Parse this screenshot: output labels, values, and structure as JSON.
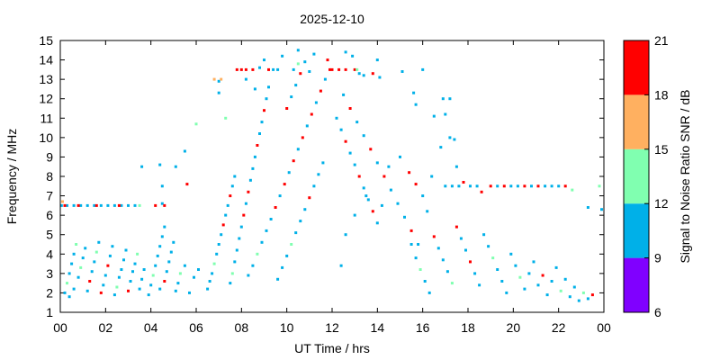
{
  "chart_data": {
    "type": "scatter",
    "title": "2025-12-10",
    "xlabel": "UT Time / hrs",
    "ylabel": "Frequency / MHz",
    "xlim": [
      0,
      24
    ],
    "ylim": [
      1,
      15
    ],
    "xticks": [
      "00",
      "02",
      "04",
      "06",
      "08",
      "10",
      "12",
      "14",
      "16",
      "18",
      "20",
      "22",
      "00"
    ],
    "yticks": [
      "1",
      "2",
      "3",
      "4",
      "5",
      "6",
      "7",
      "8",
      "9",
      "10",
      "11",
      "12",
      "13",
      "14",
      "15"
    ],
    "grid": false,
    "colorbar": {
      "label": "Signal to Noise Ratio SNR / dB",
      "ticks": [
        "6",
        "9",
        "12",
        "15",
        "18",
        "21"
      ],
      "bands": [
        {
          "min": 6,
          "max": 9,
          "color": "#8000ff"
        },
        {
          "min": 9,
          "max": 12,
          "color": "#00b0e8"
        },
        {
          "min": 12,
          "max": 15,
          "color": "#80ffb0"
        },
        {
          "min": 15,
          "max": 18,
          "color": "#ffb060"
        },
        {
          "min": 18,
          "max": 21,
          "color": "#ff0000"
        }
      ]
    },
    "points": [
      [
        0.05,
        6.5,
        11
      ],
      [
        0.3,
        6.5,
        10
      ],
      [
        0.6,
        6.5,
        10
      ],
      [
        0.9,
        6.5,
        11
      ],
      [
        1.2,
        6.5,
        10
      ],
      [
        1.5,
        6.5,
        11
      ],
      [
        1.8,
        6.5,
        10
      ],
      [
        2.1,
        6.5,
        10
      ],
      [
        2.4,
        6.5,
        11
      ],
      [
        2.7,
        6.5,
        10
      ],
      [
        3.0,
        6.5,
        11
      ],
      [
        3.3,
        6.5,
        10
      ],
      [
        3.5,
        6.5,
        13
      ],
      [
        0.2,
        6.5,
        19
      ],
      [
        0.8,
        6.5,
        19
      ],
      [
        1.6,
        6.5,
        19
      ],
      [
        2.6,
        6.5,
        19
      ],
      [
        4.2,
        6.5,
        19
      ],
      [
        4.5,
        6.6,
        10
      ],
      [
        4.6,
        6.5,
        20
      ],
      [
        0.1,
        6.7,
        16
      ],
      [
        0.2,
        2.0,
        11
      ],
      [
        0.3,
        2.5,
        13
      ],
      [
        0.4,
        3.0,
        10
      ],
      [
        0.5,
        3.5,
        11
      ],
      [
        0.6,
        4.0,
        10
      ],
      [
        0.7,
        4.5,
        13
      ],
      [
        0.4,
        1.8,
        10
      ],
      [
        0.6,
        2.2,
        11
      ],
      [
        0.8,
        2.8,
        10
      ],
      [
        0.9,
        3.3,
        12
      ],
      [
        1.0,
        3.8,
        10
      ],
      [
        1.1,
        4.3,
        11
      ],
      [
        1.2,
        2.1,
        10
      ],
      [
        1.3,
        2.6,
        19
      ],
      [
        1.4,
        3.1,
        10
      ],
      [
        1.5,
        3.6,
        11
      ],
      [
        1.6,
        4.1,
        13
      ],
      [
        1.7,
        4.6,
        10
      ],
      [
        1.8,
        2.0,
        19
      ],
      [
        1.9,
        2.4,
        10
      ],
      [
        2.0,
        2.9,
        11
      ],
      [
        2.1,
        3.4,
        19
      ],
      [
        2.2,
        3.9,
        10
      ],
      [
        2.3,
        4.4,
        11
      ],
      [
        2.4,
        1.9,
        10
      ],
      [
        2.5,
        2.3,
        13
      ],
      [
        2.6,
        2.8,
        10
      ],
      [
        2.7,
        3.2,
        11
      ],
      [
        2.8,
        3.7,
        10
      ],
      [
        2.9,
        4.2,
        10
      ],
      [
        3.0,
        2.1,
        19
      ],
      [
        3.1,
        2.6,
        10
      ],
      [
        3.2,
        3.1,
        11
      ],
      [
        3.3,
        3.5,
        10
      ],
      [
        3.4,
        4.0,
        13
      ],
      [
        3.5,
        2.2,
        10
      ],
      [
        3.6,
        2.7,
        11
      ],
      [
        3.7,
        3.2,
        10
      ],
      [
        3.9,
        1.9,
        11
      ],
      [
        4.0,
        2.4,
        10
      ],
      [
        4.1,
        2.9,
        13
      ],
      [
        4.2,
        3.4,
        10
      ],
      [
        4.3,
        3.9,
        11
      ],
      [
        4.4,
        4.4,
        10
      ],
      [
        4.5,
        4.9,
        11
      ],
      [
        4.6,
        5.4,
        10
      ],
      [
        4.4,
        2.2,
        11
      ],
      [
        4.6,
        2.6,
        19
      ],
      [
        4.7,
        3.1,
        10
      ],
      [
        4.8,
        3.6,
        11
      ],
      [
        4.9,
        4.1,
        10
      ],
      [
        5.0,
        4.6,
        11
      ],
      [
        5.1,
        2.1,
        10
      ],
      [
        5.2,
        2.5,
        11
      ],
      [
        5.3,
        3.0,
        13
      ],
      [
        5.5,
        3.4,
        10
      ],
      [
        5.7,
        2.0,
        11
      ],
      [
        5.9,
        2.8,
        10
      ],
      [
        6.1,
        3.2,
        11
      ],
      [
        3.6,
        8.5,
        10
      ],
      [
        4.4,
        8.6,
        10
      ],
      [
        4.5,
        7.5,
        11
      ],
      [
        5.1,
        8.5,
        10
      ],
      [
        5.5,
        9.3,
        10
      ],
      [
        5.6,
        7.6,
        20
      ],
      [
        6.5,
        2.2,
        10
      ],
      [
        6.6,
        2.6,
        11
      ],
      [
        6.7,
        3.0,
        10
      ],
      [
        6.8,
        3.5,
        13
      ],
      [
        6.9,
        4.0,
        10
      ],
      [
        7.0,
        4.5,
        11
      ],
      [
        7.1,
        5.0,
        10
      ],
      [
        7.2,
        5.5,
        19
      ],
      [
        7.3,
        6.0,
        11
      ],
      [
        7.4,
        6.5,
        10
      ],
      [
        7.5,
        7.0,
        19
      ],
      [
        7.6,
        7.5,
        11
      ],
      [
        7.7,
        8.0,
        10
      ],
      [
        7.5,
        2.5,
        11
      ],
      [
        7.6,
        3.0,
        13
      ],
      [
        7.7,
        3.6,
        10
      ],
      [
        7.8,
        4.2,
        11
      ],
      [
        7.9,
        4.8,
        10
      ],
      [
        8.0,
        5.4,
        11
      ],
      [
        8.1,
        6.0,
        19
      ],
      [
        8.2,
        6.6,
        10
      ],
      [
        8.3,
        7.2,
        19
      ],
      [
        8.4,
        7.8,
        11
      ],
      [
        8.5,
        8.4,
        10
      ],
      [
        8.6,
        9.0,
        11
      ],
      [
        8.7,
        9.6,
        19
      ],
      [
        8.8,
        10.2,
        10
      ],
      [
        8.9,
        10.8,
        11
      ],
      [
        9.0,
        11.4,
        19
      ],
      [
        9.1,
        12.0,
        10
      ],
      [
        9.2,
        12.6,
        11
      ],
      [
        8.3,
        2.9,
        10
      ],
      [
        8.5,
        3.4,
        11
      ],
      [
        8.7,
        4.0,
        13
      ],
      [
        8.9,
        4.6,
        10
      ],
      [
        9.1,
        5.2,
        11
      ],
      [
        9.3,
        5.8,
        10
      ],
      [
        9.5,
        6.4,
        19
      ],
      [
        9.7,
        7.0,
        10
      ],
      [
        9.9,
        7.6,
        19
      ],
      [
        10.1,
        8.2,
        11
      ],
      [
        10.3,
        8.8,
        19
      ],
      [
        10.5,
        9.4,
        10
      ],
      [
        10.7,
        10.0,
        19
      ],
      [
        10.9,
        10.6,
        11
      ],
      [
        11.1,
        11.2,
        19
      ],
      [
        11.3,
        11.8,
        10
      ],
      [
        11.5,
        12.4,
        19
      ],
      [
        11.7,
        13.0,
        11
      ],
      [
        11.8,
        14.0,
        20
      ],
      [
        11.9,
        13.5,
        19
      ],
      [
        9.6,
        2.7,
        10
      ],
      [
        9.8,
        3.3,
        11
      ],
      [
        10.0,
        3.9,
        10
      ],
      [
        10.2,
        4.5,
        13
      ],
      [
        10.4,
        5.1,
        10
      ],
      [
        10.6,
        5.7,
        11
      ],
      [
        10.8,
        6.3,
        10
      ],
      [
        11.0,
        6.9,
        19
      ],
      [
        11.2,
        7.5,
        11
      ],
      [
        11.4,
        8.1,
        10
      ],
      [
        11.6,
        8.7,
        11
      ],
      [
        10.0,
        11.5,
        19
      ],
      [
        10.2,
        12.1,
        11
      ],
      [
        10.4,
        12.7,
        10
      ],
      [
        10.6,
        13.3,
        19
      ],
      [
        10.8,
        13.9,
        11
      ],
      [
        9.2,
        13.5,
        19
      ],
      [
        9.6,
        13.5,
        10
      ],
      [
        10.3,
        13.5,
        11
      ],
      [
        10.5,
        13.8,
        12
      ],
      [
        11.0,
        13.4,
        10
      ],
      [
        12.0,
        13.5,
        19
      ],
      [
        12.3,
        13.5,
        19
      ],
      [
        12.6,
        13.5,
        19
      ],
      [
        13.0,
        13.5,
        19
      ],
      [
        13.2,
        13.3,
        10
      ],
      [
        13.4,
        13.2,
        11
      ],
      [
        12.2,
        11.0,
        10
      ],
      [
        12.4,
        10.4,
        11
      ],
      [
        12.6,
        9.8,
        19
      ],
      [
        12.8,
        9.2,
        10
      ],
      [
        13.0,
        8.6,
        11
      ],
      [
        13.2,
        8.0,
        19
      ],
      [
        13.4,
        7.4,
        10
      ],
      [
        13.6,
        6.8,
        11
      ],
      [
        13.8,
        6.2,
        19
      ],
      [
        14.0,
        5.6,
        10
      ],
      [
        12.5,
        12.2,
        11
      ],
      [
        12.8,
        11.5,
        19
      ],
      [
        13.1,
        10.8,
        10
      ],
      [
        13.4,
        10.1,
        11
      ],
      [
        13.7,
        9.4,
        19
      ],
      [
        14.0,
        8.7,
        10
      ],
      [
        14.3,
        8.0,
        19
      ],
      [
        14.6,
        7.3,
        11
      ],
      [
        14.9,
        6.6,
        10
      ],
      [
        15.2,
        5.9,
        11
      ],
      [
        15.5,
        5.2,
        19
      ],
      [
        15.8,
        4.5,
        10
      ],
      [
        12.4,
        3.4,
        10
      ],
      [
        12.6,
        5.0,
        11
      ],
      [
        13.0,
        6.0,
        10
      ],
      [
        13.5,
        7.0,
        11
      ],
      [
        14.2,
        6.5,
        10
      ],
      [
        14.5,
        8.5,
        11
      ],
      [
        15.0,
        9.0,
        10
      ],
      [
        15.4,
        8.2,
        19
      ],
      [
        15.7,
        7.6,
        19
      ],
      [
        16.0,
        7.0,
        11
      ],
      [
        16.2,
        6.2,
        10
      ],
      [
        15.5,
        4.5,
        10
      ],
      [
        15.7,
        3.8,
        11
      ],
      [
        15.9,
        3.2,
        13
      ],
      [
        16.1,
        2.6,
        10
      ],
      [
        16.3,
        2.0,
        11
      ],
      [
        16.5,
        4.9,
        19
      ],
      [
        16.7,
        4.3,
        10
      ],
      [
        16.9,
        3.7,
        11
      ],
      [
        17.1,
        3.1,
        10
      ],
      [
        17.3,
        2.5,
        13
      ],
      [
        17.5,
        5.4,
        19
      ],
      [
        17.7,
        4.8,
        11
      ],
      [
        17.9,
        4.2,
        10
      ],
      [
        18.1,
        3.6,
        19
      ],
      [
        18.3,
        3.0,
        11
      ],
      [
        18.5,
        2.4,
        10
      ],
      [
        18.7,
        5.0,
        11
      ],
      [
        18.9,
        4.4,
        10
      ],
      [
        19.1,
        3.8,
        13
      ],
      [
        19.3,
        3.2,
        10
      ],
      [
        19.5,
        2.6,
        11
      ],
      [
        19.7,
        2.0,
        10
      ],
      [
        19.9,
        4.0,
        11
      ],
      [
        20.1,
        3.4,
        10
      ],
      [
        20.3,
        2.8,
        13
      ],
      [
        20.5,
        2.2,
        11
      ],
      [
        20.7,
        3.0,
        10
      ],
      [
        20.9,
        3.6,
        11
      ],
      [
        21.1,
        2.4,
        10
      ],
      [
        21.3,
        2.9,
        19
      ],
      [
        21.5,
        1.9,
        11
      ],
      [
        21.7,
        2.6,
        10
      ],
      [
        21.9,
        3.3,
        11
      ],
      [
        22.1,
        2.1,
        13
      ],
      [
        22.3,
        2.7,
        10
      ],
      [
        22.5,
        1.8,
        11
      ],
      [
        22.7,
        2.3,
        10
      ],
      [
        22.9,
        1.6,
        11
      ],
      [
        23.1,
        2.0,
        13
      ],
      [
        23.3,
        1.7,
        10
      ],
      [
        23.5,
        1.9,
        19
      ],
      [
        17.0,
        7.5,
        11
      ],
      [
        17.3,
        7.5,
        10
      ],
      [
        17.6,
        7.5,
        11
      ],
      [
        17.8,
        7.7,
        19
      ],
      [
        18.1,
        7.5,
        10
      ],
      [
        18.4,
        7.5,
        11
      ],
      [
        18.6,
        7.2,
        19
      ],
      [
        19.0,
        7.5,
        19
      ],
      [
        19.3,
        7.5,
        10
      ],
      [
        19.6,
        7.5,
        19
      ],
      [
        19.9,
        7.5,
        11
      ],
      [
        20.2,
        7.5,
        10
      ],
      [
        20.5,
        7.5,
        19
      ],
      [
        20.8,
        7.5,
        11
      ],
      [
        21.1,
        7.5,
        19
      ],
      [
        21.4,
        7.5,
        10
      ],
      [
        21.7,
        7.5,
        11
      ],
      [
        22.0,
        7.5,
        10
      ],
      [
        22.3,
        7.5,
        19
      ],
      [
        22.6,
        7.3,
        13
      ],
      [
        23.3,
        6.4,
        11
      ],
      [
        23.9,
        6.3,
        11
      ],
      [
        23.8,
        7.5,
        12
      ],
      [
        8.2,
        13.5,
        19
      ],
      [
        8.5,
        13.5,
        19
      ],
      [
        8.8,
        13.6,
        10
      ],
      [
        9.0,
        14.0,
        11
      ],
      [
        9.4,
        13.5,
        10
      ],
      [
        9.8,
        14.2,
        10
      ],
      [
        10.5,
        14.5,
        11
      ],
      [
        11.2,
        14.3,
        10
      ],
      [
        13.8,
        13.3,
        19
      ],
      [
        14.1,
        13.1,
        10
      ],
      [
        15.1,
        13.4,
        10
      ],
      [
        15.7,
        11.7,
        10
      ],
      [
        16.9,
        12.0,
        11
      ],
      [
        17.2,
        10.0,
        11
      ],
      [
        17.4,
        9.9,
        10
      ],
      [
        17.5,
        8.5,
        11
      ],
      [
        16.5,
        11.1,
        10
      ],
      [
        6.0,
        10.7,
        12
      ],
      [
        6.8,
        13.0,
        16
      ],
      [
        7.0,
        12.3,
        10
      ],
      [
        7.3,
        11.0,
        13
      ],
      [
        7.0,
        12.9,
        10
      ],
      [
        7.1,
        13.0,
        16
      ],
      [
        7.8,
        13.5,
        19
      ],
      [
        8.0,
        13.5,
        19
      ],
      [
        8.2,
        13.0,
        10
      ],
      [
        8.6,
        12.5,
        11
      ],
      [
        12.9,
        14.2,
        10
      ],
      [
        12.6,
        14.4,
        10
      ],
      [
        13.1,
        13.5,
        13
      ],
      [
        14.0,
        14.0,
        10
      ],
      [
        16.0,
        13.5,
        11
      ],
      [
        17.0,
        11.2,
        10
      ],
      [
        17.2,
        12.0,
        10
      ],
      [
        15.6,
        12.3,
        10
      ],
      [
        16.4,
        8.0,
        10
      ],
      [
        16.8,
        9.5,
        11
      ]
    ]
  }
}
